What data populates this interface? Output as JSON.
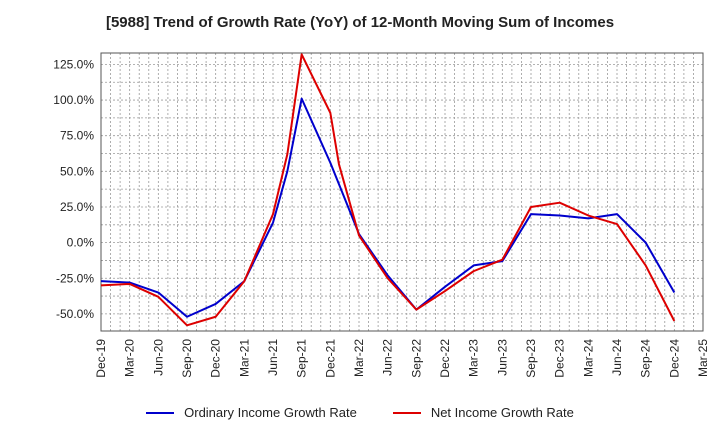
{
  "chart_data": {
    "type": "line",
    "title": "[5988]  Trend of Growth Rate (YoY) of 12-Month Moving Sum of Incomes",
    "xlabel": "",
    "ylabel": "",
    "ylim": [
      -62,
      133
    ],
    "y_ticks": [
      125,
      100,
      75,
      50,
      25,
      0,
      -25,
      -50
    ],
    "y_tick_labels": [
      "125.0%",
      "100.0%",
      "75.0%",
      "50.0%",
      "25.0%",
      "0.0%",
      "-25.0%",
      "-50.0%"
    ],
    "x_tick_labels": [
      "Dec-19",
      "Mar-20",
      "Jun-20",
      "Sep-20",
      "Dec-20",
      "Mar-21",
      "Jun-21",
      "Sep-21",
      "Dec-21",
      "Mar-22",
      "Jun-22",
      "Sep-22",
      "Dec-22",
      "Mar-23",
      "Jun-23",
      "Sep-23",
      "Dec-23",
      "Mar-24",
      "Jun-24",
      "Sep-24",
      "Dec-24",
      "Mar-25"
    ],
    "grid": true,
    "legend_position": "bottom",
    "series": [
      {
        "name": "Ordinary Income Growth Rate",
        "color": "#0000cc",
        "points": [
          [
            0,
            -27
          ],
          [
            1,
            -28
          ],
          [
            2,
            -35
          ],
          [
            3,
            -52
          ],
          [
            4,
            -43
          ],
          [
            5,
            -27
          ],
          [
            6,
            14
          ],
          [
            6.5,
            50
          ],
          [
            7,
            101
          ],
          [
            8,
            56
          ],
          [
            9,
            6
          ],
          [
            10,
            -23
          ],
          [
            11,
            -47
          ],
          [
            12,
            -31
          ],
          [
            13,
            -16
          ],
          [
            14,
            -13
          ],
          [
            15,
            20
          ],
          [
            16,
            19
          ],
          [
            17,
            17
          ],
          [
            18,
            20
          ],
          [
            19,
            0
          ],
          [
            20,
            -35
          ]
        ]
      },
      {
        "name": "Net Income Growth Rate",
        "color": "#dd0000",
        "points": [
          [
            0,
            -30
          ],
          [
            1,
            -29
          ],
          [
            2,
            -38
          ],
          [
            3,
            -58
          ],
          [
            4,
            -52
          ],
          [
            5,
            -27
          ],
          [
            6,
            20
          ],
          [
            6.5,
            62
          ],
          [
            7,
            132
          ],
          [
            8,
            91
          ],
          [
            8.3,
            55
          ],
          [
            9,
            5
          ],
          [
            10,
            -25
          ],
          [
            11,
            -47
          ],
          [
            12,
            -34
          ],
          [
            13,
            -20
          ],
          [
            14,
            -12
          ],
          [
            15,
            25
          ],
          [
            16,
            28
          ],
          [
            17,
            19
          ],
          [
            18,
            13
          ],
          [
            19,
            -16
          ],
          [
            20,
            -55
          ]
        ]
      }
    ]
  }
}
